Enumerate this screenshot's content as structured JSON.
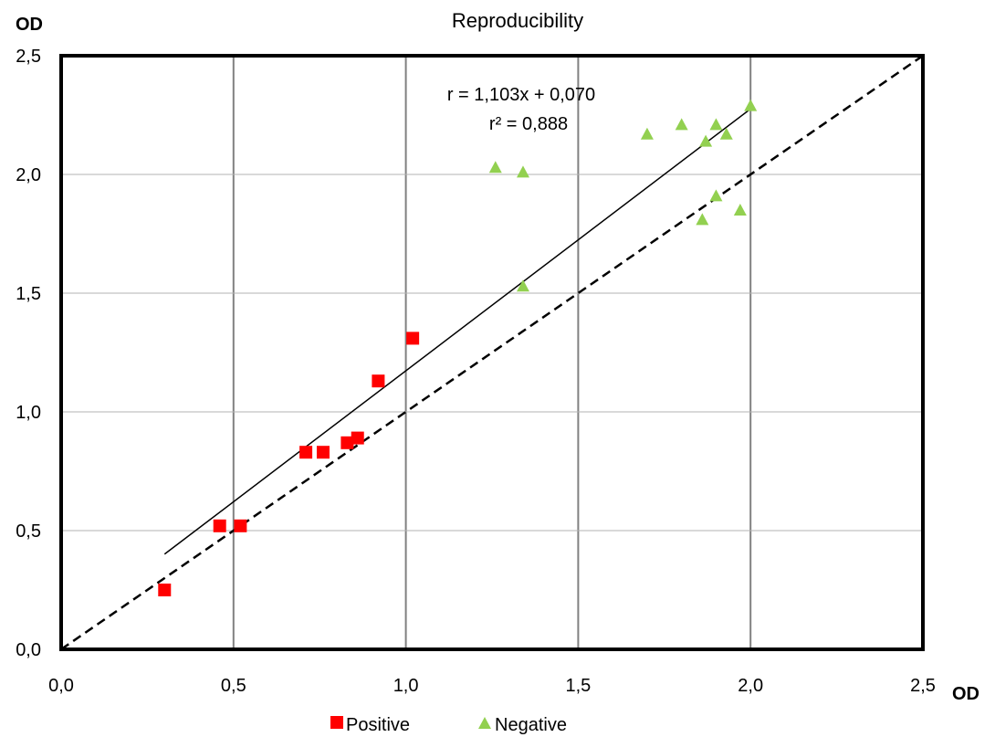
{
  "chart_data": {
    "type": "scatter",
    "title": "Reproducibility",
    "xlabel": "OD",
    "ylabel": "OD",
    "xlim": [
      0,
      2.5
    ],
    "ylim": [
      0,
      2.5
    ],
    "x_ticks": [
      "0,0",
      "0,5",
      "1,0",
      "1,5",
      "2,0",
      "2,5"
    ],
    "y_ticks": [
      "0,0",
      "0,5",
      "1,0",
      "1,5",
      "2,0",
      "2,5"
    ],
    "grid": true,
    "legend_position": "bottom",
    "series": [
      {
        "name": "Positive",
        "color": "#ff0000",
        "marker": "square",
        "points": [
          {
            "x": 0.3,
            "y": 0.25
          },
          {
            "x": 0.46,
            "y": 0.52
          },
          {
            "x": 0.52,
            "y": 0.52
          },
          {
            "x": 0.71,
            "y": 0.83
          },
          {
            "x": 0.76,
            "y": 0.83
          },
          {
            "x": 0.83,
            "y": 0.87
          },
          {
            "x": 0.86,
            "y": 0.89
          },
          {
            "x": 0.92,
            "y": 1.13
          },
          {
            "x": 1.02,
            "y": 1.31
          }
        ]
      },
      {
        "name": "Negative",
        "color": "#92d050",
        "marker": "triangle",
        "points": [
          {
            "x": 1.26,
            "y": 2.03
          },
          {
            "x": 1.34,
            "y": 2.01
          },
          {
            "x": 1.34,
            "y": 1.53
          },
          {
            "x": 1.7,
            "y": 2.17
          },
          {
            "x": 1.8,
            "y": 2.21
          },
          {
            "x": 1.86,
            "y": 1.81
          },
          {
            "x": 1.87,
            "y": 2.14
          },
          {
            "x": 1.9,
            "y": 2.21
          },
          {
            "x": 1.9,
            "y": 1.91
          },
          {
            "x": 1.93,
            "y": 2.17
          },
          {
            "x": 1.97,
            "y": 1.85
          },
          {
            "x": 2.0,
            "y": 2.29
          }
        ]
      }
    ],
    "regression_line": {
      "slope": 1.103,
      "intercept": 0.07,
      "x_from": 0.3,
      "x_to": 2.0
    },
    "identity_line": {
      "style": "dashed",
      "from": [
        0,
        0
      ],
      "to": [
        2.5,
        2.5
      ]
    },
    "annotations": {
      "equation": "r = 1,103x + 0,070",
      "r_squared": "r² = 0,888"
    }
  }
}
